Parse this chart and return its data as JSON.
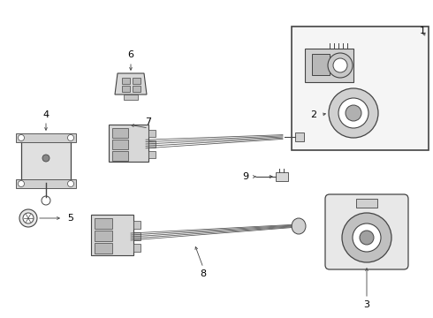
{
  "bg_color": "#ffffff",
  "line_color": "#444444",
  "label_color": "#000000",
  "fig_w": 4.9,
  "fig_h": 3.6,
  "dpi": 100
}
